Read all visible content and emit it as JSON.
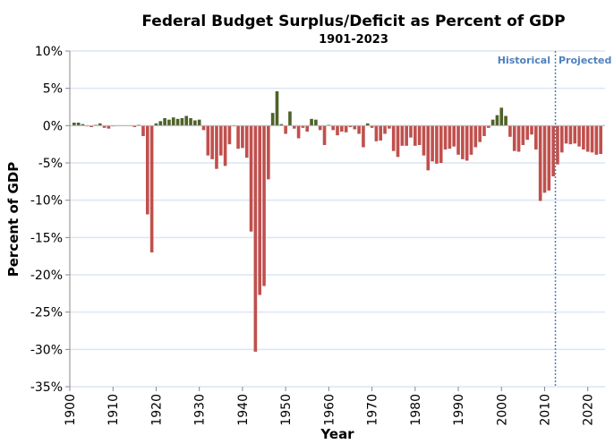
{
  "chart_data": {
    "type": "bar",
    "title": "Federal Budget Surplus/Deficit as Percent of GDP",
    "subtitle": "1901-2023",
    "xlabel": "Year",
    "ylabel": "Percent of GDP",
    "ylim": [
      -35,
      10
    ],
    "xlim": [
      1900,
      2024
    ],
    "yticks": [
      "10%",
      "5%",
      "0%",
      "-5%",
      "-10%",
      "-15%",
      "-20%",
      "-25%",
      "-30%",
      "-35%"
    ],
    "ytick_values": [
      10,
      5,
      0,
      -5,
      -10,
      -15,
      -20,
      -25,
      -30,
      -35
    ],
    "xticks": [
      "1900",
      "1910",
      "1920",
      "1930",
      "1940",
      "1950",
      "1960",
      "1970",
      "1980",
      "1990",
      "2000",
      "2010",
      "2020"
    ],
    "grid": true,
    "colors": {
      "surplus": "#4f6228",
      "deficit": "#c0504d",
      "divider": "#4f81bd",
      "grid": "#dce6f2"
    },
    "annotations": {
      "historical": "Historical",
      "projected": "Projected",
      "divider_year": 2012.5
    },
    "years_start": 1901,
    "values": [
      0.4,
      0.4,
      0.2,
      -0.1,
      -0.2,
      0.1,
      0.3,
      -0.3,
      -0.4,
      -0.1,
      0.0,
      0.0,
      0.0,
      0.0,
      -0.2,
      0.1,
      -1.4,
      -11.9,
      -17.0,
      0.3,
      0.6,
      1.0,
      0.8,
      1.1,
      0.9,
      1.0,
      1.3,
      1.0,
      0.7,
      0.8,
      -0.6,
      -4.0,
      -4.5,
      -5.8,
      -4.0,
      -5.4,
      -2.5,
      -0.1,
      -3.1,
      -3.0,
      -4.3,
      -14.2,
      -30.3,
      -22.7,
      -21.5,
      -7.2,
      1.7,
      4.6,
      0.2,
      -1.1,
      1.9,
      -0.4,
      -1.7,
      -0.3,
      -0.8,
      0.9,
      0.8,
      -0.6,
      -2.6,
      0.1,
      -0.6,
      -1.3,
      -0.8,
      -0.9,
      -0.2,
      -0.5,
      -1.1,
      -2.9,
      0.3,
      -0.3,
      -2.1,
      -2.0,
      -1.1,
      -0.4,
      -3.4,
      -4.2,
      -2.7,
      -2.7,
      -1.6,
      -2.7,
      -2.6,
      -4.0,
      -6.0,
      -4.8,
      -5.1,
      -5.0,
      -3.2,
      -3.1,
      -2.8,
      -3.9,
      -4.5,
      -4.7,
      -3.9,
      -2.9,
      -2.2,
      -1.4,
      -0.3,
      0.8,
      1.4,
      2.4,
      1.3,
      -1.5,
      -3.4,
      -3.5,
      -2.6,
      -1.9,
      -1.2,
      -3.2,
      -10.1,
      -9.0,
      -8.7,
      -6.8,
      -5.2,
      -3.6,
      -2.4,
      -2.5,
      -2.4,
      -2.8,
      -3.2,
      -3.5,
      -3.6,
      -3.9,
      -3.8
    ]
  }
}
